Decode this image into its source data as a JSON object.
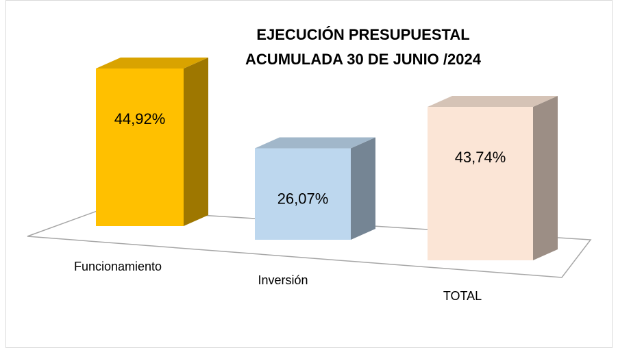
{
  "chart_data": {
    "type": "bar3d",
    "title": [
      "EJECUCIÓN PRESUPUESTAL",
      "ACUMULADA 30 DE JUNIO /2024"
    ],
    "categories": [
      "Funcionamiento",
      "Inversión",
      "TOTAL"
    ],
    "values": [
      44.92,
      26.07,
      43.74
    ],
    "value_labels": [
      "44,92%",
      "26,07%",
      "43,74%"
    ],
    "colors": [
      "#ffc000",
      "#bdd7ee",
      "#fbe5d6"
    ]
  }
}
